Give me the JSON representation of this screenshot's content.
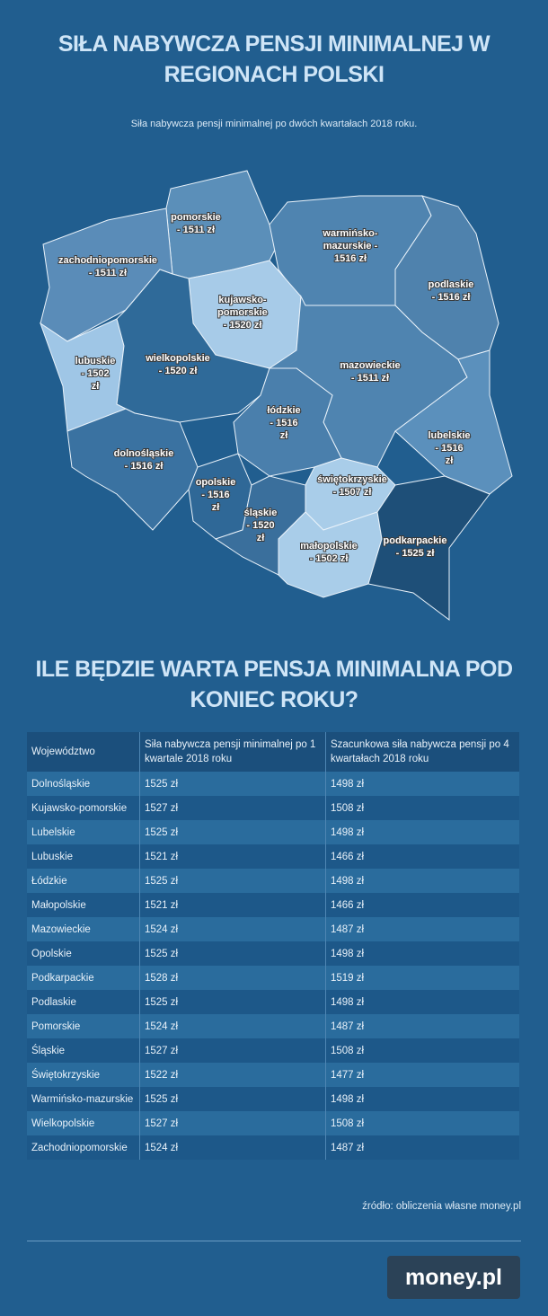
{
  "header": {
    "title": "SIŁA NABYWCZA PENSJI MINIMALNEJ W REGIONACH POLSKI",
    "subtitle": "Siła nabywcza pensji minimalnej po dwóch kwartałach 2018 roku."
  },
  "map": {
    "regions": [
      {
        "lines": [
          "pomorskie",
          "- 1511 zł"
        ],
        "color": "#5b8fb9"
      },
      {
        "lines": [
          "zachodniopomorskie",
          "- 1511 zł"
        ],
        "color": "#5a8cb8"
      },
      {
        "lines": [
          "warmińsko-",
          "mazurskie -",
          "1516 zł"
        ],
        "color": "#4f84b0"
      },
      {
        "lines": [
          "podlaskie",
          "- 1516 zł"
        ],
        "color": "#4f82ad"
      },
      {
        "lines": [
          "kujawsko-",
          "pomorskie",
          "- 1520 zł"
        ],
        "color": "#a7cbe8"
      },
      {
        "lines": [
          "lubuskie",
          "- 1502",
          "zł"
        ],
        "color": "#9fc6e6"
      },
      {
        "lines": [
          "wielkopolskie",
          "- 1520 zł"
        ],
        "color": "#2f6a99"
      },
      {
        "lines": [
          "mazowieckie",
          "- 1511 zł"
        ],
        "color": "#4f84b0"
      },
      {
        "lines": [
          "łódzkie",
          "- 1516",
          "zł"
        ],
        "color": "#4a7fac"
      },
      {
        "lines": [
          "lubelskie",
          "- 1516",
          "zł"
        ],
        "color": "#5b90bc"
      },
      {
        "lines": [
          "dolnośląskie",
          "- 1516 zł"
        ],
        "color": "#3a72a1"
      },
      {
        "lines": [
          "opolskie",
          "- 1516",
          "zł"
        ],
        "color": "#2f6897"
      },
      {
        "lines": [
          "świętokrzyskie",
          "- 1507 zł"
        ],
        "color": "#a9cde9"
      },
      {
        "lines": [
          "śląskie",
          "- 1520",
          "zł"
        ],
        "color": "#3a6f9c"
      },
      {
        "lines": [
          "małopolskie",
          "- 1502 zł"
        ],
        "color": "#a9cde9"
      },
      {
        "lines": [
          "podkarpackie",
          "- 1525 zł"
        ],
        "color": "#1e4f78"
      }
    ]
  },
  "section": {
    "title": "ILE BĘDZIE WARTA PENSJA MINIMALNA POD KONIEC ROKU?"
  },
  "table": {
    "headers": [
      "Województwo",
      "Siła nabywcza pensji minimalnej po 1 kwartale 2018 roku",
      "Szacunkowa siła nabywcza pensji po 4 kwartałach 2018 roku"
    ],
    "rows": [
      [
        "Dolnośląskie",
        "1525 zł",
        "1498 zł"
      ],
      [
        "Kujawsko-pomorskie",
        "1527 zł",
        "1508 zł"
      ],
      [
        "Lubelskie",
        "1525 zł",
        "1498 zł"
      ],
      [
        "Lubuskie",
        "1521 zł",
        "1466 zł"
      ],
      [
        "Łódzkie",
        "1525 zł",
        "1498 zł"
      ],
      [
        "Małopolskie",
        "1521 zł",
        "1466 zł"
      ],
      [
        "Mazowieckie",
        "1524 zł",
        "1487 zł"
      ],
      [
        "Opolskie",
        "1525 zł",
        "1498 zł"
      ],
      [
        "Podkarpackie",
        "1528 zł",
        "1519 zł"
      ],
      [
        "Podlaskie",
        "1525 zł",
        "1498 zł"
      ],
      [
        "Pomorskie",
        "1524 zł",
        "1487 zł"
      ],
      [
        "Śląskie",
        "1527 zł",
        "1508 zł"
      ],
      [
        "Świętokrzyskie",
        "1522 zł",
        "1477  zł"
      ],
      [
        "Warmińsko-mazurskie",
        "1525 zł",
        "1498  zł"
      ],
      [
        "Wielkopolskie",
        "1527 zł",
        "1508 zł"
      ],
      [
        "Zachodniopomorskie",
        "1524 zł",
        "1487 zł"
      ]
    ]
  },
  "footer": {
    "source": "źródło: obliczenia własne money.pl",
    "logo": "money.pl"
  }
}
